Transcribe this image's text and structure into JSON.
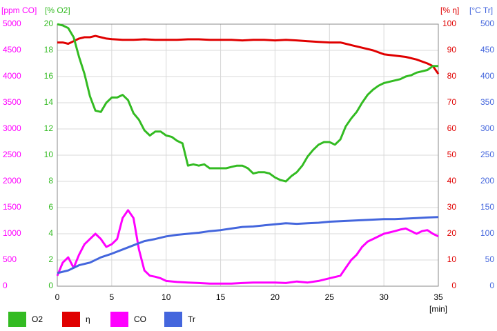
{
  "chart_data": {
    "type": "line",
    "xlim": [
      0,
      35
    ],
    "xticks": [
      0,
      5,
      10,
      15,
      20,
      25,
      30,
      35
    ],
    "xlabel": "[min]",
    "ylabel": "[% O2]",
    "ylim": [
      0,
      20
    ],
    "yticks": [
      0,
      2,
      4,
      6,
      8,
      10,
      12,
      14,
      16,
      18,
      20
    ],
    "ycolor": "#33bb22",
    "y2label": "[% η]",
    "y2lim": [
      0,
      100
    ],
    "y2ticks": [
      0,
      10,
      20,
      30,
      40,
      50,
      60,
      70,
      80,
      90,
      100
    ],
    "y2color": "#e00000",
    "y3label": "[ppm CO]",
    "y3lim": [
      0,
      5000
    ],
    "y3ticks": [
      0,
      500,
      1000,
      1500,
      2000,
      2500,
      3000,
      3500,
      4000,
      4500,
      5000
    ],
    "y3color": "#ff00ff",
    "y4label": "[°C Tr]",
    "y4lim": [
      0,
      500
    ],
    "y4ticks": [
      0,
      50,
      100,
      150,
      200,
      250,
      300,
      350,
      400,
      450,
      500
    ],
    "y4color": "#4466dd",
    "grid": true,
    "series": [
      {
        "name": "O2",
        "color": "#33bb22",
        "axis": "y",
        "x": [
          0,
          0.5,
          1,
          1.5,
          2,
          2.5,
          3,
          3.5,
          4,
          4.5,
          5,
          5.5,
          6,
          6.5,
          7,
          7.5,
          8,
          8.5,
          9,
          9.5,
          10,
          10.5,
          11,
          11.5,
          12,
          12.5,
          13,
          13.5,
          14,
          14.5,
          15,
          15.5,
          16,
          16.5,
          17,
          17.5,
          18,
          18.5,
          19,
          19.5,
          20,
          20.5,
          21,
          21.5,
          22,
          22.5,
          23,
          23.5,
          24,
          24.5,
          25,
          25.5,
          26,
          26.5,
          27,
          27.5,
          28,
          28.5,
          29,
          29.5,
          30,
          30.5,
          31,
          31.5,
          32,
          32.5,
          33,
          33.5,
          34,
          34.5,
          35
        ],
        "values": [
          20,
          19.9,
          19.7,
          19,
          17.5,
          16.2,
          14.5,
          13.4,
          13.3,
          14,
          14.4,
          14.4,
          14.6,
          14.2,
          13.2,
          12.7,
          11.9,
          11.5,
          11.8,
          11.8,
          11.5,
          11.4,
          11.1,
          10.9,
          9.2,
          9.3,
          9.2,
          9.3,
          9.0,
          9.0,
          9.0,
          9.0,
          9.1,
          9.2,
          9.2,
          9.0,
          8.6,
          8.7,
          8.7,
          8.6,
          8.3,
          8.1,
          8.0,
          8.4,
          8.7,
          9.2,
          9.9,
          10.4,
          10.8,
          11.0,
          11.0,
          10.8,
          11.2,
          12.2,
          12.8,
          13.3,
          14.0,
          14.6,
          15.0,
          15.3,
          15.5,
          15.6,
          15.7,
          15.8,
          16.0,
          16.1,
          16.3,
          16.4,
          16.5,
          16.8,
          16.8
        ]
      },
      {
        "name": "η",
        "color": "#e00000",
        "axis": "y2",
        "x": [
          0,
          0.5,
          1,
          1.5,
          2,
          2.5,
          3,
          3.5,
          4,
          4.5,
          5,
          6,
          7,
          8,
          9,
          10,
          11,
          12,
          13,
          14,
          15,
          16,
          17,
          18,
          19,
          20,
          21,
          22,
          23,
          24,
          25,
          26,
          27,
          28,
          28.5,
          29,
          30,
          31,
          32,
          33,
          34,
          34.5,
          35
        ],
        "values": [
          93,
          93,
          92.5,
          93.5,
          94.5,
          95,
          95,
          95.5,
          95,
          94.5,
          94.3,
          94,
          94,
          94.2,
          94,
          94,
          94,
          94.2,
          94.2,
          94,
          94,
          94,
          93.8,
          94,
          94,
          93.8,
          94,
          93.8,
          93.5,
          93.2,
          93,
          93,
          92,
          91,
          90.5,
          90,
          88.5,
          88,
          87.5,
          86.5,
          85,
          84,
          81
        ]
      },
      {
        "name": "CO",
        "color": "#ff00ff",
        "axis": "y3",
        "x": [
          0,
          0.5,
          1,
          1.5,
          2,
          2.5,
          3,
          3.5,
          4,
          4.5,
          5,
          5.5,
          6,
          6.5,
          7,
          7.5,
          8,
          8.5,
          9,
          9.5,
          10,
          11,
          12,
          13,
          14,
          15,
          16,
          17,
          18,
          19,
          20,
          21,
          22,
          23,
          24,
          25,
          26,
          26.5,
          27,
          27.5,
          28,
          28.5,
          29,
          30,
          31,
          31.5,
          32,
          32.5,
          33,
          33.5,
          34,
          34.5,
          35
        ],
        "values": [
          200,
          450,
          550,
          350,
          600,
          800,
          900,
          1000,
          900,
          750,
          800,
          900,
          1300,
          1450,
          1300,
          700,
          300,
          200,
          180,
          150,
          100,
          80,
          70,
          60,
          50,
          50,
          50,
          60,
          70,
          70,
          70,
          60,
          90,
          70,
          100,
          150,
          200,
          350,
          500,
          600,
          750,
          850,
          900,
          1000,
          1050,
          1080,
          1100,
          1050,
          1000,
          1050,
          1070,
          1000,
          950
        ]
      },
      {
        "name": "Tr",
        "color": "#4466dd",
        "axis": "y4",
        "x": [
          0,
          1,
          2,
          3,
          4,
          5,
          6,
          7,
          8,
          9,
          10,
          11,
          12,
          13,
          14,
          15,
          16,
          17,
          18,
          19,
          20,
          21,
          22,
          23,
          24,
          25,
          26,
          27,
          28,
          29,
          30,
          31,
          32,
          33,
          34,
          35
        ],
        "values": [
          25,
          30,
          40,
          45,
          55,
          62,
          70,
          78,
          86,
          90,
          95,
          98,
          100,
          102,
          105,
          107,
          110,
          113,
          114,
          116,
          118,
          120,
          119,
          120,
          121,
          123,
          124,
          125,
          126,
          127,
          128,
          128,
          129,
          130,
          131,
          132
        ]
      }
    ]
  }
}
